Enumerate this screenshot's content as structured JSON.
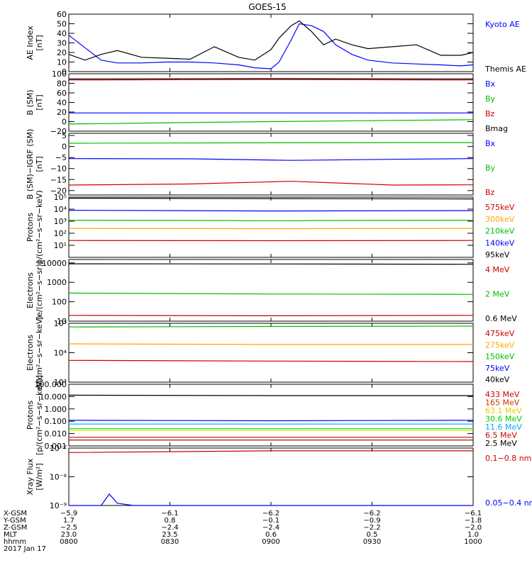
{
  "title": "GOES-15",
  "chart_data": [
    {
      "type": "line",
      "ylabel": "AE Index\n[nT]",
      "ylim": [
        0,
        60
      ],
      "yticks": [
        0,
        10,
        20,
        30,
        40,
        50,
        60
      ],
      "yticklabels": [
        "0",
        "10",
        "20",
        "30",
        "40",
        "50",
        "60"
      ],
      "series": [
        {
          "name": "Kyoto AE",
          "color": "#0000ff",
          "x": [
            0,
            0.04,
            0.08,
            0.12,
            0.18,
            0.24,
            0.3,
            0.36,
            0.42,
            0.46,
            0.5,
            0.52,
            0.55,
            0.57,
            0.6,
            0.63,
            0.66,
            0.7,
            0.74,
            0.8,
            0.86,
            0.92,
            0.97,
            1.0
          ],
          "values": [
            38,
            25,
            12,
            9,
            9,
            10,
            10,
            9,
            7,
            4,
            3,
            10,
            33,
            50,
            48,
            42,
            28,
            18,
            12,
            9,
            8,
            7,
            6,
            7
          ]
        },
        {
          "name": "Themis AE",
          "color": "#000000",
          "x": [
            0,
            0.04,
            0.08,
            0.12,
            0.18,
            0.24,
            0.3,
            0.36,
            0.42,
            0.46,
            0.5,
            0.52,
            0.55,
            0.57,
            0.6,
            0.63,
            0.66,
            0.7,
            0.74,
            0.8,
            0.86,
            0.92,
            0.97,
            1.0
          ],
          "values": [
            18,
            12,
            18,
            22,
            15,
            14,
            13,
            26,
            15,
            12,
            23,
            35,
            48,
            53,
            42,
            28,
            34,
            28,
            24,
            26,
            28,
            17,
            17,
            20
          ]
        }
      ],
      "labels": [
        "Kyoto AE",
        "Themis AE"
      ],
      "label_colors": [
        "#0000ff",
        "#000000"
      ]
    },
    {
      "type": "line",
      "ylabel": "B (SM)\n[nT]",
      "ylim": [
        -20,
        100
      ],
      "yticks": [
        -20,
        0,
        20,
        40,
        60,
        80,
        100
      ],
      "yticklabels": [
        "−20",
        "0",
        "20",
        "40",
        "60",
        "80",
        "100"
      ],
      "series": [
        {
          "name": "Bx",
          "color": "#0000ff",
          "x": [
            0,
            0.5,
            1
          ],
          "values": [
            18,
            18,
            18
          ]
        },
        {
          "name": "By",
          "color": "#00bb00",
          "x": [
            0,
            0.5,
            1
          ],
          "values": [
            -5,
            0,
            4
          ]
        },
        {
          "name": "Bz",
          "color": "#cc0000",
          "x": [
            0,
            0.5,
            1
          ],
          "values": [
            87,
            88,
            87
          ]
        },
        {
          "name": "Bmag",
          "color": "#000000",
          "x": [
            0,
            0.5,
            1
          ],
          "values": [
            89,
            90,
            89
          ]
        }
      ],
      "labels": [
        "Bx",
        "By",
        "Bz",
        "Bmag"
      ],
      "label_colors": [
        "#0000ff",
        "#00bb00",
        "#cc0000",
        "#000000"
      ]
    },
    {
      "type": "line",
      "ylabel": "B (SM)−IGRF (SM)\n[nT]",
      "ylim": [
        -22,
        6
      ],
      "yticks": [
        -20,
        -15,
        -10,
        -5,
        0,
        5
      ],
      "yticklabels": [
        "−20",
        "−15",
        "−10",
        "−5",
        "0",
        "5"
      ],
      "series": [
        {
          "name": "Bx",
          "color": "#0000ff",
          "x": [
            0,
            0.3,
            0.55,
            0.8,
            1
          ],
          "values": [
            -5.5,
            -5.6,
            -6.3,
            -5.8,
            -5.5
          ]
        },
        {
          "name": "By",
          "color": "#00bb00",
          "x": [
            0,
            0.5,
            1
          ],
          "values": [
            1.5,
            1.7,
            1.8
          ]
        },
        {
          "name": "Bz",
          "color": "#cc0000",
          "x": [
            0,
            0.3,
            0.55,
            0.8,
            1
          ],
          "values": [
            -17.5,
            -17,
            -15.8,
            -17.5,
            -17.4
          ]
        }
      ],
      "labels": [
        "Bx",
        "By",
        "Bz"
      ],
      "label_colors": [
        "#0000ff",
        "#00bb00",
        "#cc0000"
      ]
    },
    {
      "type": "line",
      "ylabel": "Protons\np/(cm²−s−sr−keV)",
      "yscale": "log",
      "ylim": [
        1,
        100000
      ],
      "yticks": [
        10,
        100,
        1000,
        10000,
        100000
      ],
      "yticklabels": [
        "10¹",
        "10²",
        "10³",
        "10⁴",
        "10⁵"
      ],
      "series": [
        {
          "name": "575keV",
          "color": "#000000",
          "x": [
            0,
            0.5,
            1
          ],
          "values": [
            80000,
            75000,
            70000
          ]
        },
        {
          "name": "300keV",
          "color": "#0000ff",
          "x": [
            0,
            0.5,
            1
          ],
          "values": [
            8000,
            7000,
            7500
          ]
        },
        {
          "name": "210keV",
          "color": "#00bb00",
          "x": [
            0,
            0.5,
            1
          ],
          "values": [
            1200,
            1100,
            1200
          ]
        },
        {
          "name": "140keV",
          "color": "#ffa500",
          "x": [
            0,
            0.5,
            1
          ],
          "values": [
            250,
            240,
            250
          ]
        },
        {
          "name": "95keV",
          "color": "#cc0000",
          "x": [
            0,
            0.5,
            1
          ],
          "values": [
            25,
            24,
            25
          ]
        }
      ],
      "labels": [
        "575keV",
        "300keV",
        "210keV",
        "140keV",
        "95keV"
      ],
      "label_colors": [
        "#cc0000",
        "#ffa500",
        "#00bb00",
        "#0000ff",
        "#000000"
      ]
    },
    {
      "type": "line",
      "ylabel": "Electrons\n[e/(cm²−s−sr)]",
      "yscale": "log",
      "ylim": [
        10,
        15000
      ],
      "yticks": [
        10,
        100,
        1000,
        10000
      ],
      "yticklabels": [
        "10",
        "100",
        "1000",
        "10000"
      ],
      "series": [
        {
          "name": "0.6 MeV",
          "color": "#000000",
          "x": [
            0,
            0.5,
            1
          ],
          "values": [
            9000,
            8800,
            8500
          ]
        },
        {
          "name": "2 MeV",
          "color": "#00bb00",
          "x": [
            0,
            0.5,
            1
          ],
          "values": [
            280,
            250,
            240
          ]
        },
        {
          "name": "4 MeV",
          "color": "#cc0000",
          "x": [
            0,
            0.5,
            1
          ],
          "values": [
            20,
            19,
            20
          ]
        }
      ],
      "labels": [
        "4 MeV",
        "2 MeV",
        "0.6 MeV"
      ],
      "label_colors": [
        "#cc0000",
        "#00bb00",
        "#000000"
      ]
    },
    {
      "type": "line",
      "ylabel": "Electrons\ne/(cm²−s−sr−keV)",
      "yscale": "log",
      "ylim": [
        1000,
        100000
      ],
      "yticks": [
        1000,
        10000,
        100000
      ],
      "yticklabels": [
        "10³",
        "10⁴",
        "10⁵"
      ],
      "series": [
        {
          "name": "40keV",
          "color": "#00bb00",
          "x": [
            0,
            0.5,
            1
          ],
          "values": [
            75000,
            78000,
            80000
          ]
        },
        {
          "name": "75keV",
          "color": "#ffa500",
          "x": [
            0,
            0.5,
            1
          ],
          "values": [
            20000,
            19000,
            19000
          ]
        },
        {
          "name": "150keV",
          "color": "#cc0000",
          "x": [
            0,
            0.5,
            1
          ],
          "values": [
            5500,
            5200,
            5000
          ]
        }
      ],
      "labels": [
        "475keV",
        "275keV",
        "150keV",
        "75keV",
        "40keV"
      ],
      "label_colors": [
        "#cc0000",
        "#ffa500",
        "#00bb00",
        "#0000ff",
        "#000000"
      ]
    },
    {
      "type": "line",
      "ylabel": "Protons\n[p/(cm²−s−sr−keV)]",
      "yscale": "log",
      "ylim": [
        0.001,
        100
      ],
      "yticks": [
        0.001,
        0.01,
        0.1,
        1,
        10,
        100
      ],
      "yticklabels": [
        "0.001",
        "0.010",
        "0.100",
        "1.000",
        "10.000",
        "100.000"
      ],
      "series": [
        {
          "name": "2.5 MeV",
          "color": "#000000",
          "x": [
            0,
            0.5,
            1
          ],
          "values": [
            13,
            12,
            12
          ]
        },
        {
          "name": "11.6 MeV",
          "color": "#00bfff",
          "x": [
            0,
            0.5,
            1
          ],
          "values": [
            0.06,
            0.06,
            0.06
          ]
        },
        {
          "name": "6.5 MeV",
          "color": "#0000ff",
          "x": [
            0,
            0.5,
            1
          ],
          "values": [
            0.12,
            0.11,
            0.12
          ]
        },
        {
          "name": "30.6 MeV",
          "color": "#00dd00",
          "x": [
            0,
            0.5,
            1
          ],
          "values": [
            0.025,
            0.025,
            0.025
          ]
        },
        {
          "name": "63.1 MeV",
          "color": "#dddd00",
          "x": [
            0,
            0.5,
            1
          ],
          "values": [
            0.018,
            0.018,
            0.018
          ]
        },
        {
          "name": "165 MeV",
          "color": "#cc0000",
          "x": [
            0,
            0.5,
            1
          ],
          "values": [
            0.005,
            0.005,
            0.005
          ]
        },
        {
          "name": "433 MeV",
          "color": "#8b0000",
          "x": [
            0,
            0.5,
            1
          ],
          "values": [
            0.003,
            0.003,
            0.003
          ]
        }
      ],
      "labels": [
        "433 MeV",
        "165 MeV",
        "63.1 MeV",
        "30.6 MeV",
        "11.6 MeV",
        "6.5 MeV",
        "2.5 MeV"
      ],
      "label_colors": [
        "#cc0000",
        "#cc3300",
        "#eecc00",
        "#00cc00",
        "#00aaff",
        "#cc0000",
        "#000000"
      ]
    },
    {
      "type": "line",
      "ylabel": "Xray Flux\n[W/m²]",
      "yscale": "log",
      "ylim": [
        1e-09,
        1e-07
      ],
      "yticks": [
        1e-09,
        1e-08,
        1e-07
      ],
      "yticklabels": [
        "10⁻⁹",
        "10⁻⁸",
        "10⁻⁷"
      ],
      "series": [
        {
          "name": "0.1-0.8 nm",
          "color": "#cc0000",
          "x": [
            0,
            0.5,
            1
          ],
          "values": [
            7e-08,
            8e-08,
            8e-08
          ]
        },
        {
          "name": "0.05-0.4 nm",
          "color": "#0000ff",
          "x": [
            0,
            0.08,
            0.1,
            0.12,
            0.16,
            1
          ],
          "values": [
            1e-09,
            1e-09,
            2.5e-09,
            1.2e-09,
            1e-09,
            1e-09
          ]
        }
      ],
      "labels": [
        "0.1−0.8 nm",
        "0.05−0.4 nm"
      ],
      "label_colors": [
        "#cc0000",
        "#0000ff"
      ]
    }
  ],
  "footer": {
    "rows": [
      {
        "label": "X-GSM",
        "values": [
          "−5.9",
          "−6.1",
          "−6.2",
          "−6.2",
          "−6.1"
        ]
      },
      {
        "label": "Y-GSM",
        "values": [
          "1.7",
          "0.8",
          "−0.1",
          "−0.9",
          "−1.8"
        ]
      },
      {
        "label": "Z-GSM",
        "values": [
          "−2.5",
          "−2.4",
          "−2.4",
          "−2.2",
          "−2.0"
        ]
      },
      {
        "label": "MLT",
        "values": [
          "23.0",
          "23.5",
          "0.6",
          "0.5",
          "1.0"
        ]
      },
      {
        "label": "hhmm",
        "values": [
          "0800",
          "0830",
          "0900",
          "0930",
          "1000"
        ]
      }
    ],
    "date": "2017 Jan 17"
  }
}
